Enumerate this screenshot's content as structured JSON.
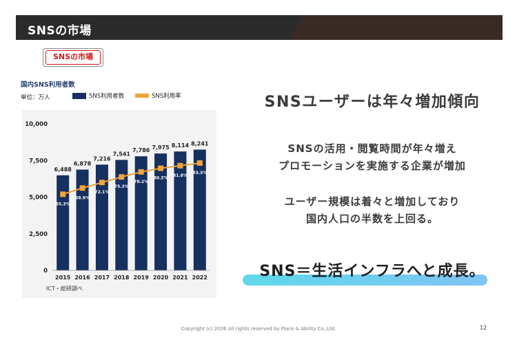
{
  "header": {
    "title": "SNSの市場"
  },
  "section_badge": "SNSの市場",
  "chart": {
    "title": "国内SNS利用者数",
    "unit": "単位：万人",
    "source": "ICT・総研調べ"
  },
  "chart_data": {
    "type": "bar",
    "title": "国内SNS利用者数",
    "categories": [
      "2015",
      "2016",
      "2017",
      "2018",
      "2019",
      "2020",
      "2021",
      "2022"
    ],
    "series": [
      {
        "name": "SNS利用者数",
        "type": "bar",
        "values": [
          6488,
          6878,
          7216,
          7541,
          7786,
          7975,
          8114,
          8241
        ],
        "labels": [
          "6,488",
          "6,878",
          "7,216",
          "7,541",
          "7,786",
          "7,975",
          "8,114",
          "8,241"
        ]
      },
      {
        "name": "SNS利用率",
        "type": "line",
        "values": [
          65.3,
          68.9,
          72.1,
          75.3,
          78.2,
          80.3,
          81.8,
          83.3
        ],
        "labels": [
          "65.3%",
          "68.9%",
          "72.1%",
          "75.3%",
          "78.2%",
          "80.3%",
          "81.8%",
          "83.3%"
        ]
      }
    ],
    "ylim": [
      0,
      10000
    ],
    "yticks": [
      0,
      2500,
      5000,
      7500,
      10000
    ],
    "ytick_labels": [
      "0",
      "2,500",
      "5,000",
      "7,500",
      "10,000"
    ],
    "legend": "top",
    "grid": false,
    "colors": {
      "bar": "#16305f",
      "line": "#f2a33a"
    }
  },
  "right": {
    "headline": "SNSユーザーは年々増加傾向",
    "line1": "SNSの活用・閲覧時間が年々増え",
    "line2": "プロモーションを実施する企業が増加",
    "line3": "ユーザー規模は着々と増加しており",
    "line4": "国内人口の半数を上回る。",
    "tagline": "SNS＝生活インフラへと成長。"
  },
  "footer": {
    "copyright": "Copyright (c) 2026 All rights  reserved by Place & Ability Co.,Ltd.",
    "page": "12"
  }
}
